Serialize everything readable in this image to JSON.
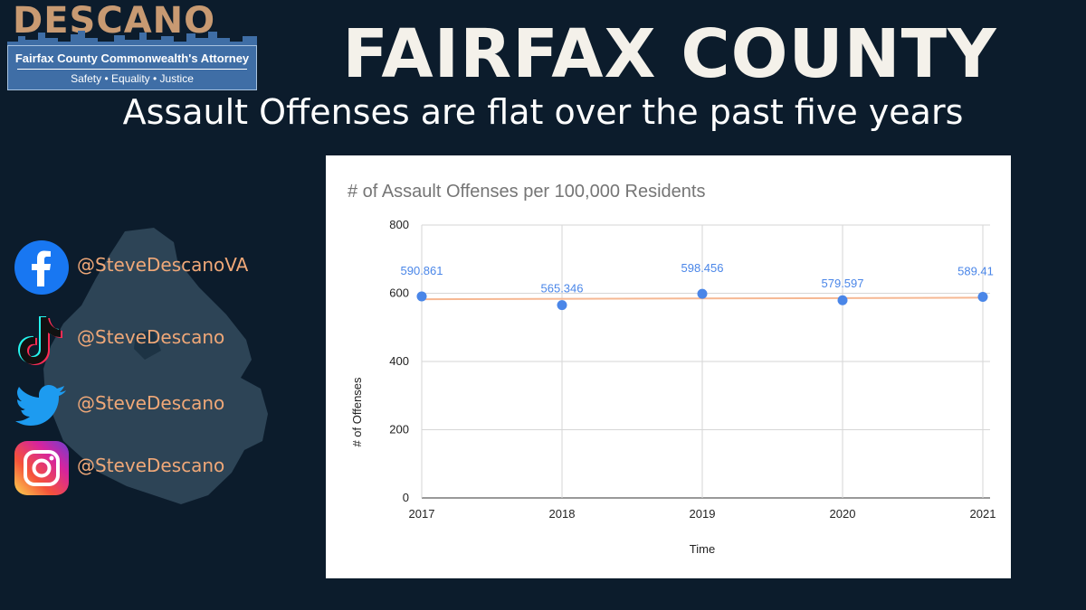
{
  "logo": {
    "word": "DESCANO",
    "office": "Fairfax County Commonwealth's Attorney",
    "tagline": "Safety • Equality • Justice"
  },
  "headline": "FAIRFAX COUNTY",
  "subheadline": "Assault Offenses are flat over the past five years",
  "social": [
    {
      "icon": "facebook-icon",
      "handle": "@SteveDescanoVA"
    },
    {
      "icon": "tiktok-icon",
      "handle": "@SteveDescano"
    },
    {
      "icon": "twitter-icon",
      "handle": "@SteveDescano"
    },
    {
      "icon": "instagram-icon",
      "handle": "@SteveDescano"
    }
  ],
  "colors": {
    "background": "#0c1c2c",
    "point": "#4a86e8",
    "trendline": "#f6b893",
    "handle": "#f0a878"
  },
  "chart_data": {
    "type": "scatter",
    "title": "# of Assault Offenses per 100,000 Residents",
    "xlabel": "Time",
    "ylabel": "# of Offenses",
    "x": [
      "2017",
      "2018",
      "2019",
      "2020",
      "2021"
    ],
    "values": [
      590.861,
      565.346,
      598.456,
      579.597,
      589.41
    ],
    "labels": [
      "590.861",
      "565.346",
      "598.456",
      "579.597",
      "589.41"
    ],
    "ylim": [
      0,
      800
    ],
    "yticks": [
      "0",
      "200",
      "400",
      "600",
      "800"
    ],
    "grid": true,
    "trendline": "linear"
  }
}
